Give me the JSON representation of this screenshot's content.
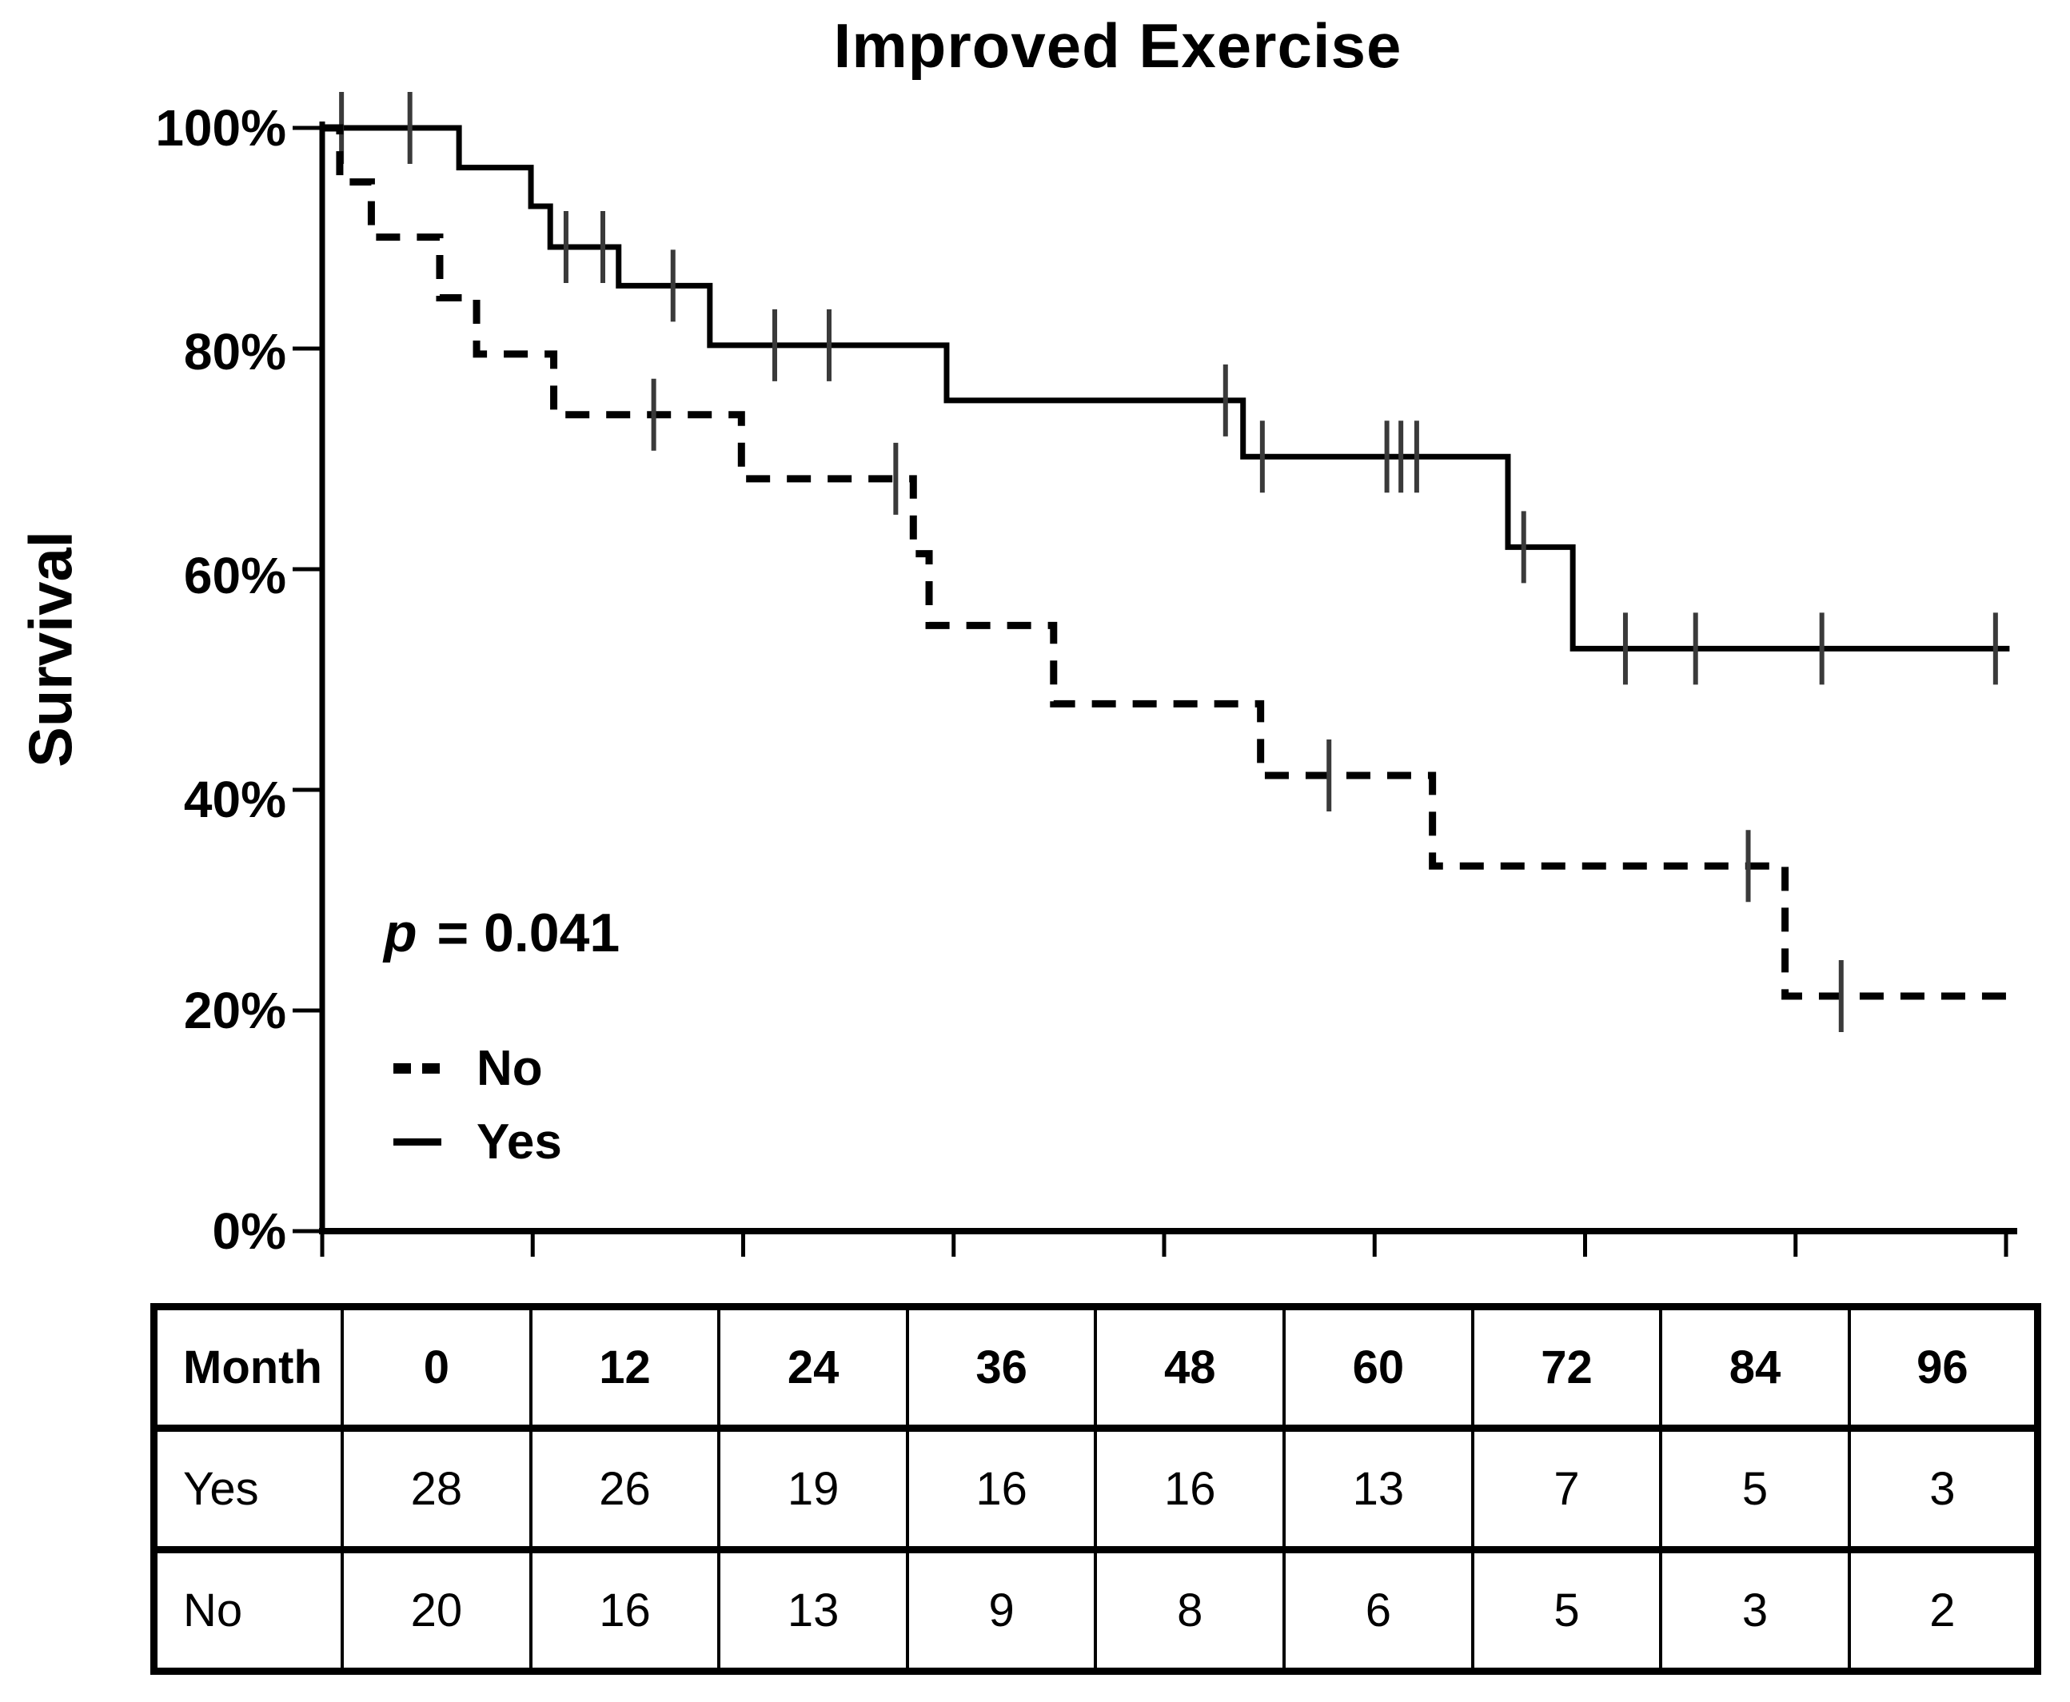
{
  "chart": {
    "title": "Improved Exercise",
    "ylabel": "Survival",
    "p_italic": "p",
    "p_rest": "= 0.041",
    "y_tick_labels": [
      "100%",
      "80%",
      "60%",
      "40%",
      "20%",
      "0%"
    ],
    "colors": {
      "line": "#000000",
      "censor": "#3a3a3a",
      "background": "#ffffff"
    }
  },
  "chart_data": {
    "type": "line",
    "subtype": "kaplan-meier-step",
    "title": "Improved Exercise",
    "xlabel": "Month",
    "ylabel": "Survival",
    "xlim": [
      0,
      96
    ],
    "ylim": [
      0,
      100
    ],
    "x_ticks": [
      0,
      12,
      24,
      36,
      48,
      60,
      72,
      84,
      96
    ],
    "y_ticks_pct": [
      100,
      80,
      60,
      40,
      20,
      0
    ],
    "annotation": "p = 0.041",
    "legend_position": "lower-left",
    "grid": false,
    "series": [
      {
        "name": "Yes",
        "style": "solid",
        "end_month": 96.2,
        "steps": [
          [
            0,
            100
          ],
          [
            7.8,
            96.4
          ],
          [
            11.9,
            92.9
          ],
          [
            13.0,
            89.2
          ],
          [
            16.9,
            85.7
          ],
          [
            22.1,
            80.3
          ],
          [
            35.6,
            75.3
          ],
          [
            52.5,
            70.2
          ],
          [
            67.6,
            62.0
          ],
          [
            71.3,
            52.8
          ]
        ],
        "censors": [
          [
            1.1,
            100
          ],
          [
            5.0,
            100
          ],
          [
            13.9,
            89.2
          ],
          [
            16.0,
            89.2
          ],
          [
            20.0,
            85.7
          ],
          [
            25.8,
            80.3
          ],
          [
            28.9,
            80.3
          ],
          [
            51.5,
            75.3
          ],
          [
            53.6,
            70.2
          ],
          [
            60.7,
            70.2
          ],
          [
            61.5,
            70.2
          ],
          [
            62.4,
            70.2
          ],
          [
            68.5,
            62.0
          ],
          [
            74.3,
            52.8
          ],
          [
            78.3,
            52.8
          ],
          [
            85.5,
            52.8
          ],
          [
            95.4,
            52.8
          ]
        ]
      },
      {
        "name": "No",
        "style": "dashed",
        "end_month": 96.2,
        "steps": [
          [
            0,
            100
          ],
          [
            1.0,
            95.1
          ],
          [
            2.8,
            90.1
          ],
          [
            6.7,
            84.6
          ],
          [
            8.8,
            79.5
          ],
          [
            13.2,
            74.0
          ],
          [
            23.9,
            68.2
          ],
          [
            33.7,
            61.4
          ],
          [
            34.6,
            54.9
          ],
          [
            41.7,
            47.8
          ],
          [
            53.5,
            41.3
          ],
          [
            63.3,
            33.1
          ],
          [
            83.4,
            21.3
          ]
        ],
        "censors": [
          [
            18.9,
            74.0
          ],
          [
            32.7,
            68.2
          ],
          [
            57.4,
            41.3
          ],
          [
            81.3,
            33.1
          ],
          [
            86.6,
            21.3
          ]
        ]
      }
    ]
  },
  "legend": {
    "items": [
      {
        "label": "No",
        "style": "dashed"
      },
      {
        "label": "Yes",
        "style": "solid"
      }
    ]
  },
  "table": {
    "header": [
      "Month",
      "0",
      "12",
      "24",
      "36",
      "48",
      "60",
      "72",
      "84",
      "96"
    ],
    "rows": [
      {
        "label": "Yes",
        "values": [
          "28",
          "26",
          "19",
          "16",
          "16",
          "13",
          "7",
          "5",
          "3"
        ]
      },
      {
        "label": "No",
        "values": [
          "20",
          "16",
          "13",
          "9",
          "8",
          "6",
          "5",
          "3",
          "2"
        ]
      }
    ]
  }
}
